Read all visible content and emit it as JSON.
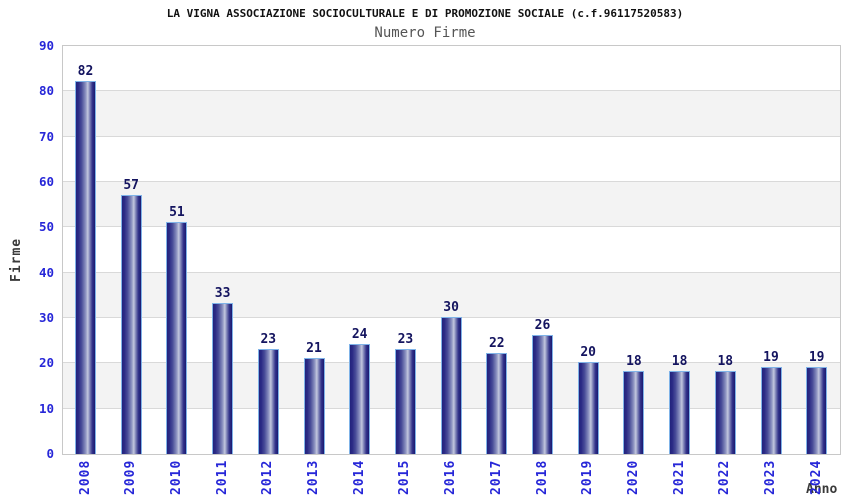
{
  "chart_data": {
    "type": "bar",
    "title": "LA VIGNA ASSOCIAZIONE SOCIOCULTURALE E DI PROMOZIONE SOCIALE (c.f.96117520583)",
    "subtitle": "Numero Firme",
    "xlabel": "Anno",
    "ylabel": "Firme",
    "categories": [
      "2008",
      "2009",
      "2010",
      "2011",
      "2012",
      "2013",
      "2014",
      "2015",
      "2016",
      "2017",
      "2018",
      "2019",
      "2020",
      "2021",
      "2022",
      "2023",
      "2024"
    ],
    "values": [
      82,
      57,
      51,
      33,
      23,
      21,
      24,
      23,
      30,
      22,
      26,
      20,
      18,
      18,
      18,
      19,
      19
    ],
    "ylim": [
      0,
      90
    ],
    "yticks": [
      0,
      10,
      20,
      30,
      40,
      50,
      60,
      70,
      80,
      90
    ],
    "grid": true,
    "legend": "none",
    "plot_bands_alternating": true,
    "colors": {
      "tick_label": "#2727d8",
      "value_label": "#14145f",
      "axis_title": "#3a3a3a",
      "title_text": "#111111",
      "subtitle_text": "#555555",
      "gridline": "#d9d9d9",
      "band_fill": "#f3f3f3",
      "plot_border": "#c8c8c8",
      "bar_dark": "#23237d",
      "bar_highlight": "#c2c6de",
      "bar_outline": "#7fb3e8"
    }
  }
}
